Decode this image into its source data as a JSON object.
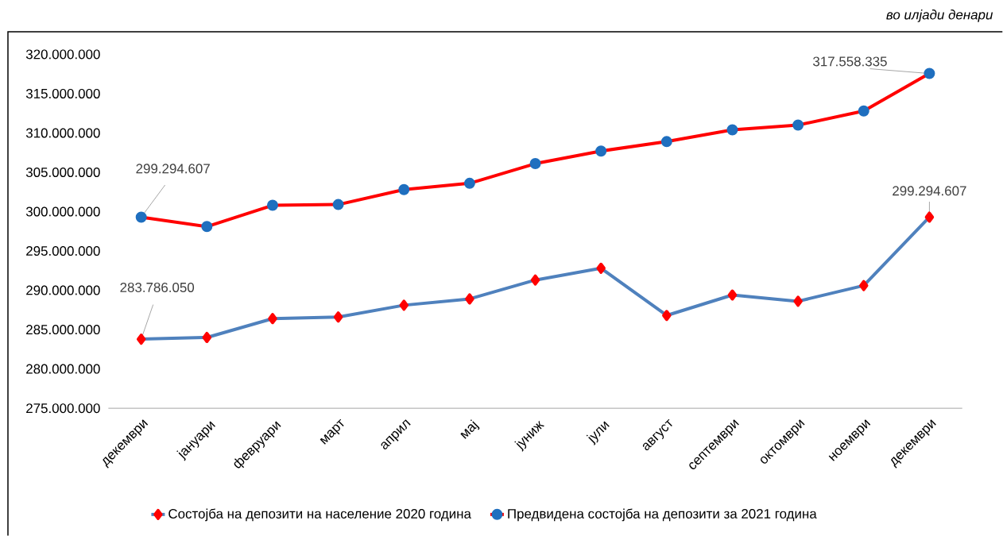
{
  "chart_data": {
    "type": "line",
    "annotations": [
      "во илјади денари"
    ],
    "categories": [
      "декември",
      "јануари",
      "февруари",
      "март",
      "април",
      "мај",
      "јуниж",
      "јули",
      "август",
      "септември",
      "октомври",
      "ноември",
      "декември"
    ],
    "ylim": [
      275000000,
      320000000
    ],
    "yticks": [
      {
        "value": 275000000,
        "label": "275.000.000"
      },
      {
        "value": 280000000,
        "label": "280.000.000"
      },
      {
        "value": 285000000,
        "label": "285.000.000"
      },
      {
        "value": 290000000,
        "label": "290.000.000"
      },
      {
        "value": 295000000,
        "label": "295.000.000"
      },
      {
        "value": 300000000,
        "label": "300.000.000"
      },
      {
        "value": 305000000,
        "label": "305.000.000"
      },
      {
        "value": 310000000,
        "label": "310.000.000"
      },
      {
        "value": 315000000,
        "label": "315.000.000"
      },
      {
        "value": 320000000,
        "label": "320.000.000"
      }
    ],
    "grid": false,
    "legend": "bottom",
    "series": [
      {
        "name": "Состојба на депозити на население 2020 година",
        "color": "#4f81bd",
        "marker": "diamond",
        "colors": [
          "#ff0000",
          "#ff0000",
          "#ff0000",
          "#ff0000",
          "#ff0000",
          "#ff0000",
          "#ff0000",
          "#ff0000",
          "#ff0000",
          "#ff0000",
          "#ff0000",
          "#ff0000",
          "#ff0000"
        ],
        "values": [
          283786050,
          284000000,
          286400000,
          286600000,
          288100000,
          288900000,
          291300000,
          292800000,
          286800000,
          289400000,
          288600000,
          290600000,
          299294607
        ],
        "value_labels": [
          "283.786.050",
          null,
          null,
          null,
          null,
          null,
          null,
          null,
          null,
          null,
          null,
          null,
          "299.294.607"
        ]
      },
      {
        "name": "Предвидена состојба на депозити за 2021 година",
        "color": "#ff0000",
        "marker": "circle",
        "colors": [
          "#1f6fbf",
          "#1f6fbf",
          "#1f6fbf",
          "#1f6fbf",
          "#1f6fbf",
          "#1f6fbf",
          "#1f6fbf",
          "#1f6fbf",
          "#1f6fbf",
          "#1f6fbf",
          "#1f6fbf",
          "#1f6fbf",
          "#1f6fbf"
        ],
        "values": [
          299294607,
          298100000,
          300800000,
          300900000,
          302800000,
          303600000,
          306100000,
          307700000,
          308900000,
          310400000,
          311000000,
          312800000,
          317558335
        ],
        "value_labels": [
          "299.294.607",
          null,
          null,
          null,
          null,
          null,
          null,
          null,
          null,
          null,
          null,
          null,
          "317.558.335"
        ]
      }
    ]
  }
}
